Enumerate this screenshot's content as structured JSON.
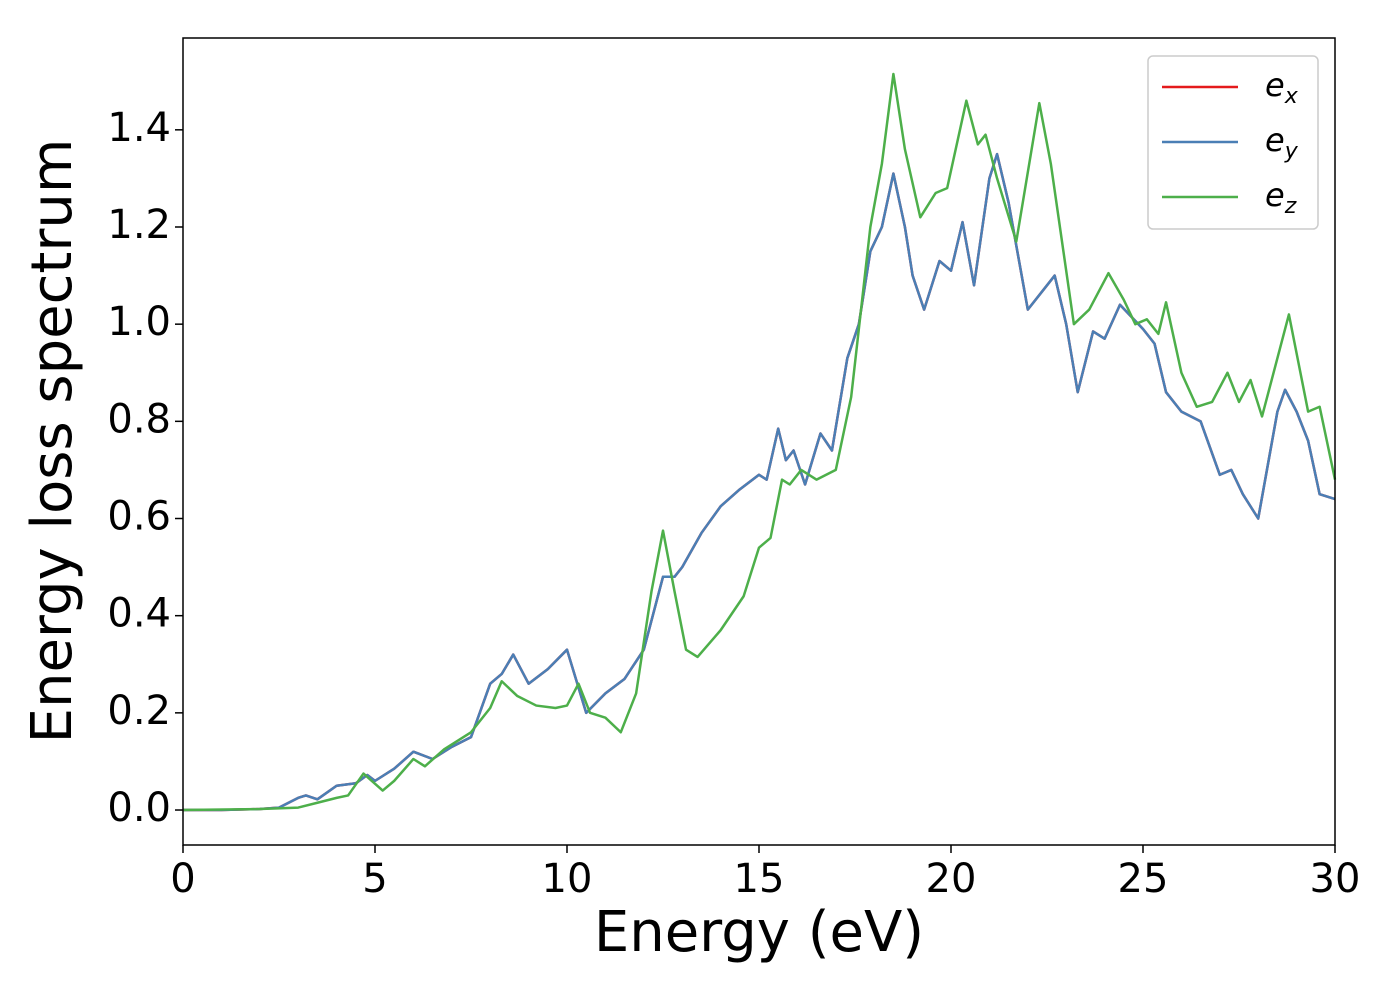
{
  "chart_data": {
    "type": "line",
    "xlabel": "Energy (eV)",
    "ylabel": "Energy loss spectrum",
    "xlim": [
      0,
      30
    ],
    "ylim": [
      -0.072,
      1.589
    ],
    "xticks": [
      0,
      5,
      10,
      15,
      20,
      25,
      30
    ],
    "yticks": [
      {
        "value": 0,
        "label": "0.0"
      },
      0.2,
      0.4,
      0.6,
      0.8,
      {
        "value": 1,
        "label": "1.0"
      },
      1.2,
      1.4
    ],
    "legend": "upper right",
    "grid": false,
    "series": [
      {
        "name": "ex",
        "color": "#e41a1c",
        "x": [
          0,
          1,
          2,
          2.5,
          3,
          3.2,
          3.5,
          4,
          4.5,
          4.8,
          5,
          5.5,
          6,
          6.5,
          7,
          7.5,
          8,
          8.3,
          8.6,
          9,
          9.5,
          10,
          10.5,
          11,
          11.5,
          12,
          12.5,
          12.8,
          13,
          13.5,
          14,
          14.5,
          15,
          15.2,
          15.5,
          15.7,
          15.9,
          16.2,
          16.6,
          16.9,
          17.3,
          17.6,
          17.9,
          18.2,
          18.5,
          18.8,
          19,
          19.3,
          19.7,
          20,
          20.3,
          20.6,
          21,
          21.2,
          21.5,
          22,
          22.5,
          22.7,
          23,
          23.3,
          23.7,
          24,
          24.4,
          25,
          25.3,
          25.6,
          26,
          26.5,
          27,
          27.3,
          27.6,
          28,
          28.5,
          28.7,
          29,
          29.3,
          29.6,
          30
        ],
        "values": [
          0,
          0,
          0.002,
          0.005,
          0.025,
          0.03,
          0.022,
          0.05,
          0.055,
          0.072,
          0.06,
          0.085,
          0.12,
          0.105,
          0.13,
          0.15,
          0.26,
          0.28,
          0.32,
          0.26,
          0.29,
          0.33,
          0.2,
          0.24,
          0.27,
          0.33,
          0.48,
          0.48,
          0.5,
          0.57,
          0.625,
          0.66,
          0.69,
          0.68,
          0.785,
          0.72,
          0.74,
          0.67,
          0.775,
          0.74,
          0.93,
          1.0,
          1.15,
          1.2,
          1.31,
          1.2,
          1.1,
          1.03,
          1.13,
          1.11,
          1.21,
          1.08,
          1.3,
          1.35,
          1.25,
          1.03,
          1.08,
          1.1,
          1.0,
          0.86,
          0.985,
          0.97,
          1.04,
          0.99,
          0.96,
          0.86,
          0.82,
          0.8,
          0.69,
          0.7,
          0.65,
          0.6,
          0.82,
          0.865,
          0.82,
          0.76,
          0.65,
          0.64
        ]
      },
      {
        "name": "ey",
        "color": "#4a7fb5",
        "x": [
          0,
          1,
          2,
          2.5,
          3,
          3.2,
          3.5,
          4,
          4.5,
          4.8,
          5,
          5.5,
          6,
          6.5,
          7,
          7.5,
          8,
          8.3,
          8.6,
          9,
          9.5,
          10,
          10.5,
          11,
          11.5,
          12,
          12.5,
          12.8,
          13,
          13.5,
          14,
          14.5,
          15,
          15.2,
          15.5,
          15.7,
          15.9,
          16.2,
          16.6,
          16.9,
          17.3,
          17.6,
          17.9,
          18.2,
          18.5,
          18.8,
          19,
          19.3,
          19.7,
          20,
          20.3,
          20.6,
          21,
          21.2,
          21.5,
          22,
          22.5,
          22.7,
          23,
          23.3,
          23.7,
          24,
          24.4,
          25,
          25.3,
          25.6,
          26,
          26.5,
          27,
          27.3,
          27.6,
          28,
          28.5,
          28.7,
          29,
          29.3,
          29.6,
          30
        ],
        "values": [
          0,
          0,
          0.002,
          0.005,
          0.025,
          0.03,
          0.022,
          0.05,
          0.055,
          0.072,
          0.06,
          0.085,
          0.12,
          0.105,
          0.13,
          0.15,
          0.26,
          0.28,
          0.32,
          0.26,
          0.29,
          0.33,
          0.2,
          0.24,
          0.27,
          0.33,
          0.48,
          0.48,
          0.5,
          0.57,
          0.625,
          0.66,
          0.69,
          0.68,
          0.785,
          0.72,
          0.74,
          0.67,
          0.775,
          0.74,
          0.93,
          1.0,
          1.15,
          1.2,
          1.31,
          1.2,
          1.1,
          1.03,
          1.13,
          1.11,
          1.21,
          1.08,
          1.3,
          1.35,
          1.25,
          1.03,
          1.08,
          1.1,
          1.0,
          0.86,
          0.985,
          0.97,
          1.04,
          0.99,
          0.96,
          0.86,
          0.82,
          0.8,
          0.69,
          0.7,
          0.65,
          0.6,
          0.82,
          0.865,
          0.82,
          0.76,
          0.65,
          0.64
        ]
      },
      {
        "name": "ez",
        "color": "#4daf4a",
        "x": [
          0,
          2,
          3,
          3.5,
          4,
          4.3,
          4.7,
          5.2,
          5.5,
          6,
          6.3,
          6.8,
          7.5,
          8,
          8.3,
          8.7,
          9.2,
          9.7,
          10,
          10.3,
          10.6,
          11,
          11.4,
          11.8,
          12.2,
          12.5,
          12.8,
          13.1,
          13.4,
          14,
          14.6,
          15,
          15.3,
          15.6,
          15.8,
          16.1,
          16.5,
          17,
          17.4,
          17.9,
          18.2,
          18.5,
          18.8,
          19.2,
          19.6,
          19.9,
          20.4,
          20.7,
          20.9,
          21.2,
          21.7,
          22.3,
          22.6,
          23.2,
          23.6,
          24.1,
          24.5,
          24.8,
          25.1,
          25.4,
          25.6,
          26,
          26.4,
          26.8,
          27.2,
          27.5,
          27.8,
          28.1,
          28.8,
          29.3,
          29.6,
          30
        ],
        "values": [
          0,
          0.002,
          0.005,
          0.015,
          0.025,
          0.03,
          0.075,
          0.04,
          0.06,
          0.105,
          0.09,
          0.125,
          0.16,
          0.21,
          0.265,
          0.235,
          0.215,
          0.21,
          0.215,
          0.26,
          0.2,
          0.19,
          0.16,
          0.24,
          0.45,
          0.575,
          0.45,
          0.33,
          0.315,
          0.37,
          0.44,
          0.54,
          0.56,
          0.68,
          0.67,
          0.7,
          0.68,
          0.7,
          0.85,
          1.2,
          1.33,
          1.515,
          1.36,
          1.22,
          1.27,
          1.28,
          1.46,
          1.37,
          1.39,
          1.3,
          1.17,
          1.455,
          1.33,
          1.0,
          1.03,
          1.105,
          1.05,
          1.0,
          1.01,
          0.98,
          1.045,
          0.9,
          0.83,
          0.84,
          0.9,
          0.84,
          0.885,
          0.81,
          1.02,
          0.82,
          0.83,
          0.68
        ]
      }
    ]
  }
}
